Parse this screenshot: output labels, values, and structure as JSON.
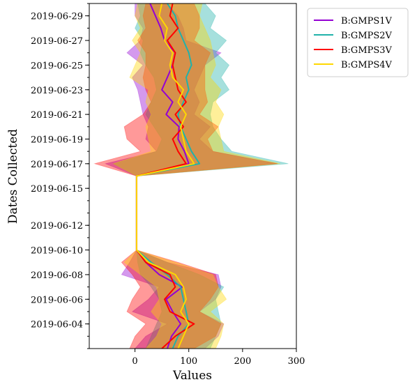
{
  "chart_data": {
    "type": "line",
    "orientation": "horizontal-values",
    "title": "",
    "xlabel": "Values",
    "ylabel": "Dates Collected",
    "xlim": [
      -85,
      300
    ],
    "xticks": [
      0,
      100,
      200,
      300
    ],
    "ytick_labels": [
      "2019-06-04",
      "2019-06-06",
      "2019-06-08",
      "2019-06-10",
      "2019-06-12",
      "2019-06-15",
      "2019-06-17",
      "2019-06-19",
      "2019-06-21",
      "2019-06-23",
      "2019-06-25",
      "2019-06-27",
      "2019-06-29"
    ],
    "dates": [
      "2019-06-02",
      "2019-06-03",
      "2019-06-04",
      "2019-06-05",
      "2019-06-06",
      "2019-06-07",
      "2019-06-08",
      "2019-06-09",
      "2019-06-10",
      "2019-06-11",
      "2019-06-12",
      "2019-06-13",
      "2019-06-14",
      "2019-06-15",
      "2019-06-16",
      "2019-06-17",
      "2019-06-18",
      "2019-06-19",
      "2019-06-20",
      "2019-06-21",
      "2019-06-22",
      "2019-06-23",
      "2019-06-24",
      "2019-06-25",
      "2019-06-26",
      "2019-06-27",
      "2019-06-28",
      "2019-06-29",
      "2019-06-30"
    ],
    "legend_position": "outside-top-right",
    "grid": false,
    "series": [
      {
        "name": "B:GMPS1V",
        "color": "#9400d3",
        "mean": [
          60,
          68,
          85,
          70,
          58,
          88,
          45,
          20,
          3,
          3,
          3,
          3,
          3,
          3,
          3,
          100,
          92,
          80,
          82,
          58,
          70,
          50,
          60,
          70,
          75,
          55,
          48,
          38,
          28
        ],
        "lower": [
          0,
          20,
          60,
          -5,
          25,
          45,
          -25,
          -10,
          3,
          3,
          3,
          3,
          3,
          3,
          3,
          -55,
          40,
          20,
          25,
          15,
          10,
          5,
          -5,
          15,
          -15,
          10,
          15,
          0,
          0
        ],
        "upper": [
          130,
          155,
          165,
          120,
          150,
          160,
          155,
          60,
          3,
          3,
          3,
          3,
          3,
          3,
          3,
          265,
          145,
          120,
          140,
          110,
          120,
          110,
          120,
          130,
          160,
          95,
          90,
          80,
          60
        ]
      },
      {
        "name": "B:GMPS2V",
        "color": "#20b2aa",
        "mean": [
          70,
          80,
          100,
          95,
          90,
          85,
          60,
          30,
          3,
          3,
          3,
          3,
          3,
          3,
          3,
          120,
          105,
          95,
          85,
          80,
          90,
          100,
          95,
          105,
          100,
          90,
          80,
          75,
          60
        ],
        "lower": [
          20,
          30,
          40,
          50,
          45,
          30,
          10,
          5,
          3,
          3,
          3,
          3,
          3,
          3,
          3,
          -40,
          40,
          50,
          35,
          20,
          30,
          40,
          35,
          20,
          10,
          15,
          0,
          10,
          5
        ],
        "upper": [
          140,
          150,
          160,
          155,
          150,
          165,
          120,
          60,
          3,
          3,
          3,
          3,
          3,
          3,
          3,
          285,
          180,
          160,
          145,
          140,
          145,
          175,
          160,
          175,
          150,
          170,
          140,
          150,
          130
        ]
      },
      {
        "name": "B:GMPS3V",
        "color": "#ff0000",
        "mean": [
          50,
          75,
          110,
          65,
          55,
          75,
          65,
          20,
          3,
          3,
          3,
          3,
          3,
          3,
          3,
          95,
          80,
          70,
          90,
          75,
          95,
          80,
          75,
          70,
          75,
          60,
          80,
          65,
          70
        ],
        "lower": [
          -10,
          0,
          20,
          -15,
          -5,
          10,
          -5,
          -25,
          3,
          3,
          3,
          3,
          3,
          3,
          3,
          -75,
          10,
          -15,
          -20,
          15,
          30,
          20,
          15,
          20,
          20,
          5,
          20,
          15,
          20
        ],
        "upper": [
          110,
          150,
          160,
          120,
          140,
          155,
          150,
          80,
          3,
          3,
          3,
          3,
          3,
          3,
          3,
          265,
          145,
          135,
          155,
          120,
          135,
          130,
          130,
          130,
          140,
          110,
          120,
          120,
          110
        ]
      },
      {
        "name": "B:GMPS4V",
        "color": "#ffd700",
        "mean": [
          80,
          90,
          100,
          85,
          95,
          90,
          75,
          25,
          3,
          3,
          3,
          3,
          3,
          3,
          3,
          110,
          95,
          90,
          85,
          95,
          80,
          90,
          70,
          65,
          70,
          55,
          60,
          45,
          50
        ],
        "lower": [
          20,
          40,
          50,
          30,
          45,
          40,
          10,
          -20,
          3,
          3,
          3,
          3,
          3,
          3,
          3,
          -40,
          30,
          25,
          20,
          30,
          20,
          25,
          -10,
          0,
          10,
          -5,
          10,
          0,
          5
        ],
        "upper": [
          150,
          160,
          165,
          140,
          170,
          155,
          145,
          75,
          3,
          3,
          3,
          3,
          3,
          3,
          3,
          270,
          165,
          160,
          155,
          165,
          150,
          160,
          140,
          150,
          145,
          140,
          130,
          120,
          125
        ]
      }
    ]
  }
}
